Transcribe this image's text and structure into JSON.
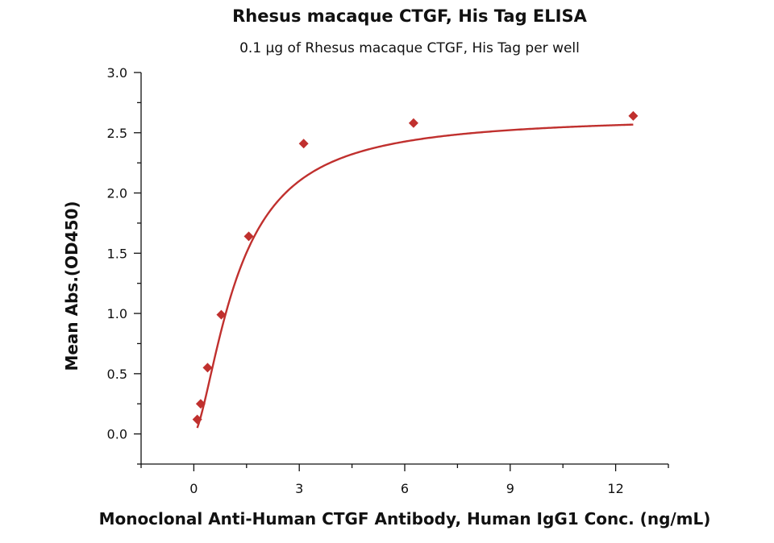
{
  "chart_data": {
    "type": "scatter",
    "title": "Rhesus macaque CTGF, His Tag ELISA",
    "subtitle": "0.1 µg of Rhesus macaque CTGF, His Tag per well",
    "xlabel": "Monoclonal Anti-Human CTGF Antibody, Human IgG1 Conc. (ng/mL)",
    "ylabel": "Mean Abs.(OD450)",
    "xlim": [
      -1.5,
      13.5
    ],
    "ylim": [
      -0.25,
      3.0
    ],
    "x_ticks": [
      "0",
      "3",
      "6",
      "9",
      "12"
    ],
    "x_tick_values": [
      0,
      3,
      6,
      9,
      12
    ],
    "y_ticks": [
      "0.0",
      "0.5",
      "1.0",
      "1.5",
      "2.0",
      "2.5",
      "3.0"
    ],
    "y_tick_values": [
      0,
      0.5,
      1.0,
      1.5,
      2.0,
      2.5,
      3.0
    ],
    "grid": false,
    "marker": "diamond",
    "color": "#c0302e",
    "series": [
      {
        "x": [
          0.098,
          0.195,
          0.391,
          0.781,
          1.563,
          3.125,
          6.25,
          12.5
        ],
        "y": [
          0.12,
          0.25,
          0.55,
          0.99,
          1.64,
          2.41,
          2.58,
          2.64
        ],
        "fit": "sigmoid"
      }
    ]
  }
}
